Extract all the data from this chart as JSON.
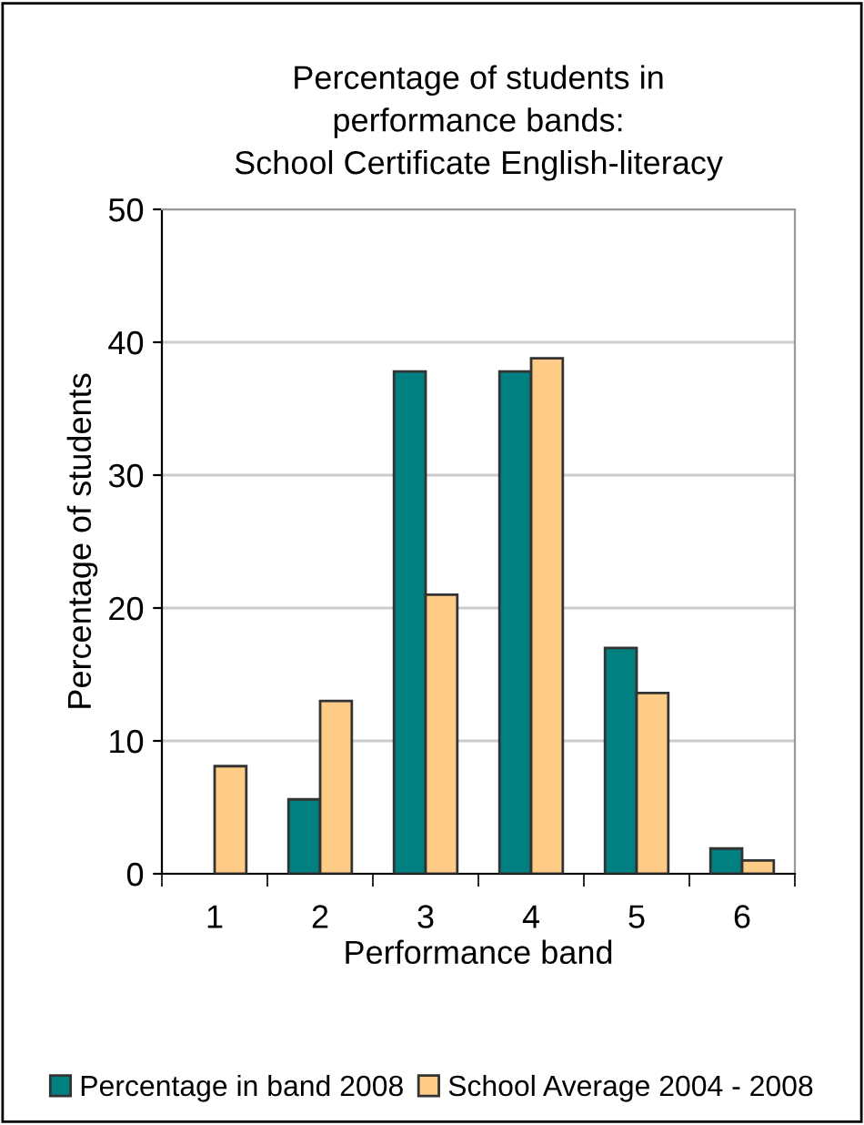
{
  "chart_data": {
    "type": "bar",
    "title": "Percentage of students in\nperformance bands:\nSchool Certificate English-literacy",
    "xlabel": "Performance band",
    "ylabel": "Percentage of students",
    "categories": [
      "1",
      "2",
      "3",
      "4",
      "5",
      "6"
    ],
    "series": [
      {
        "name": "Percentage in band 2008",
        "color": "#008080",
        "values": [
          null,
          5.6,
          37.8,
          37.8,
          17,
          1.9
        ]
      },
      {
        "name": "School Average 2004 - 2008",
        "color": "#ffcc88",
        "values": [
          8.1,
          13,
          21,
          38.8,
          13.6,
          1.0
        ]
      }
    ],
    "ylim": [
      0,
      50
    ],
    "yticks": [
      0,
      10,
      20,
      30,
      40,
      50
    ],
    "grid": "y",
    "legend": "bottom"
  }
}
